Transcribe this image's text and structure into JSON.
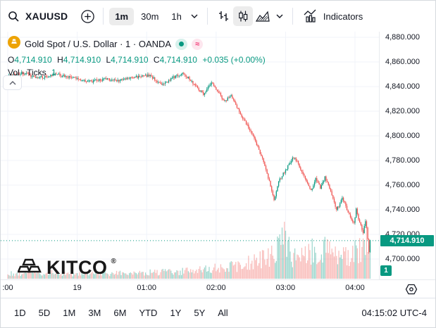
{
  "toolbar": {
    "symbol": "XAUUSD",
    "intervals": [
      {
        "label": "1m",
        "selected": true
      },
      {
        "label": "30m",
        "selected": false
      },
      {
        "label": "1h",
        "selected": false
      }
    ],
    "indicators_label": "Indicators"
  },
  "legend": {
    "title": "Gold Spot / U.S. Dollar · 1 · OANDA",
    "o_label": "O",
    "o_value": "4,714.910",
    "h_label": "H",
    "h_value": "4,714.910",
    "l_label": "L",
    "l_value": "4,714.910",
    "c_label": "C",
    "c_value": "4,714.910",
    "change": "+0.035 (+0.00%)",
    "volume_label": "Vol · Ticks",
    "volume_value": "1"
  },
  "watermark": {
    "text": "KITCO",
    "reg": "®"
  },
  "price_axis": {
    "ticks": [
      {
        "label": "4,880.000",
        "price": 4880
      },
      {
        "label": "4,860.000",
        "price": 4860
      },
      {
        "label": "4,840.000",
        "price": 4840
      },
      {
        "label": "4,820.000",
        "price": 4820
      },
      {
        "label": "4,800.000",
        "price": 4800
      },
      {
        "label": "4,780.000",
        "price": 4780
      },
      {
        "label": "4,760.000",
        "price": 4760
      },
      {
        "label": "4,740.000",
        "price": 4740
      },
      {
        "label": "4,720.000",
        "price": 4720
      },
      {
        "label": "4,700.000",
        "price": 4700
      }
    ],
    "price_tag": {
      "label": "4,714.910",
      "price": 4714.91
    },
    "volume_badge": "1"
  },
  "time_axis": {
    "labels": [
      {
        "label": ":00",
        "minute": 0
      },
      {
        "label": "19",
        "minute": 60
      },
      {
        "label": "01:00",
        "minute": 120
      },
      {
        "label": "02:00",
        "minute": 180
      },
      {
        "label": "03:00",
        "minute": 240
      },
      {
        "label": "04:00",
        "minute": 300
      }
    ]
  },
  "bottom_bar": {
    "ranges": [
      "1D",
      "5D",
      "1M",
      "3M",
      "6M",
      "YTD",
      "1Y",
      "5Y",
      "All"
    ],
    "clock": "04:15:02 UTC-4"
  },
  "colors": {
    "up": "#089981",
    "down": "#ef5350",
    "accent": "#089981",
    "grid": "#f0f3fa",
    "text": "#131722",
    "gold": "#eda303",
    "pink": "#f23674"
  },
  "chart_data": {
    "type": "candlestick",
    "title": "Gold Spot / U.S. Dollar · 1 · OANDA",
    "symbol": "XAUUSD",
    "exchange": "OANDA",
    "interval_minutes": 1,
    "ylim": [
      4690,
      4884
    ],
    "price_ticks": [
      4880,
      4860,
      4840,
      4820,
      4800,
      4780,
      4760,
      4740,
      4720,
      4700
    ],
    "time_tick_labels": [
      ":00",
      "19",
      "01:00",
      "02:00",
      "03:00",
      "04:00"
    ],
    "current_price": 4714.91,
    "current_ohlc": {
      "open": 4714.91,
      "high": 4714.91,
      "low": 4714.91,
      "close": 4714.91,
      "change": 0.035,
      "change_pct": 0.0
    },
    "price_path": [
      [
        0,
        4848
      ],
      [
        12,
        4851
      ],
      [
        27,
        4847
      ],
      [
        42,
        4850
      ],
      [
        57,
        4847
      ],
      [
        72,
        4844
      ],
      [
        84,
        4846
      ],
      [
        96,
        4845
      ],
      [
        111,
        4848
      ],
      [
        123,
        4849
      ],
      [
        133,
        4841
      ],
      [
        144,
        4848
      ],
      [
        152,
        4851
      ],
      [
        161,
        4842
      ],
      [
        169,
        4834
      ],
      [
        176,
        4843
      ],
      [
        182,
        4836
      ],
      [
        187,
        4828
      ],
      [
        193,
        4833
      ],
      [
        199,
        4821
      ],
      [
        205,
        4812
      ],
      [
        211,
        4801
      ],
      [
        217,
        4789
      ],
      [
        222,
        4776
      ],
      [
        227,
        4760
      ],
      [
        230,
        4748
      ],
      [
        234,
        4763
      ],
      [
        239,
        4771
      ],
      [
        243,
        4777
      ],
      [
        247,
        4783
      ],
      [
        250,
        4779
      ],
      [
        254,
        4771
      ],
      [
        259,
        4761
      ],
      [
        262,
        4755
      ],
      [
        266,
        4765
      ],
      [
        270,
        4758
      ],
      [
        274,
        4766
      ],
      [
        277,
        4761
      ],
      [
        280,
        4751
      ],
      [
        284,
        4740
      ],
      [
        289,
        4749
      ],
      [
        292,
        4743
      ],
      [
        296,
        4734
      ],
      [
        299,
        4729
      ],
      [
        301,
        4740
      ],
      [
        304,
        4729
      ],
      [
        307,
        4722
      ],
      [
        309,
        4730
      ],
      [
        310,
        4726
      ],
      [
        312,
        4705
      ],
      [
        313,
        4715
      ]
    ],
    "volume_profile": [
      [
        0,
        10
      ],
      [
        30,
        12
      ],
      [
        60,
        9
      ],
      [
        90,
        11
      ],
      [
        123,
        12
      ],
      [
        150,
        14
      ],
      [
        174,
        18
      ],
      [
        187,
        22
      ],
      [
        205,
        28
      ],
      [
        217,
        35
      ],
      [
        227,
        45
      ],
      [
        234,
        60
      ],
      [
        240,
        80
      ],
      [
        245,
        45
      ],
      [
        254,
        40
      ],
      [
        262,
        55
      ],
      [
        270,
        48
      ],
      [
        280,
        65
      ],
      [
        287,
        50
      ],
      [
        296,
        45
      ],
      [
        303,
        55
      ],
      [
        310,
        75
      ],
      [
        313,
        60
      ]
    ]
  }
}
